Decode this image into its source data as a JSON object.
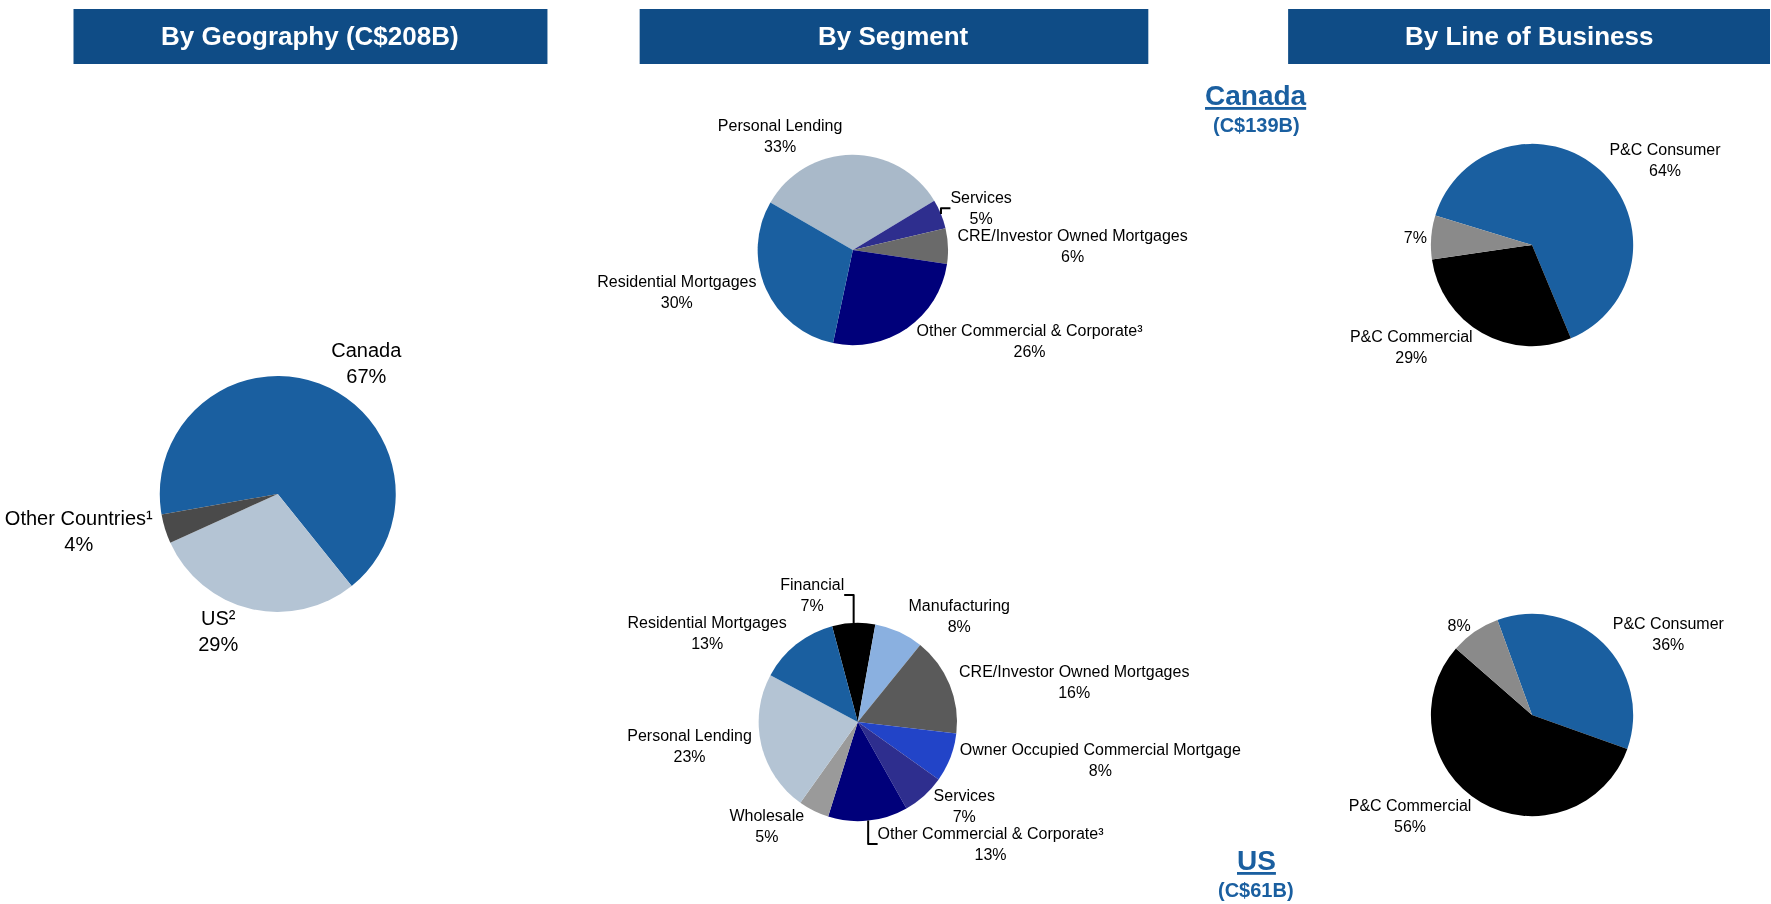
{
  "chart_data": [
    {
      "type": "pie",
      "title": "By Geography (C$208B)",
      "categories": [
        "Canada",
        "US²",
        "Other Countries¹"
      ],
      "values": [
        67,
        29,
        4
      ],
      "value_labels": [
        "67%",
        "29%",
        "4%"
      ],
      "colors": [
        "#1a5fa0",
        "#b4c4d4",
        "#4a4a4a"
      ],
      "legend": false
    },
    {
      "type": "pie",
      "title": "By Segment",
      "categories": [
        "Personal Lending",
        "Services",
        "CRE/Investor Owned Mortgages",
        "Other Commercial & Corporate³",
        "Residential Mortgages"
      ],
      "values": [
        33,
        5,
        6,
        26,
        30
      ],
      "value_labels": [
        "33%",
        "5%",
        "6%",
        "26%",
        "30%"
      ],
      "colors": [
        "#a9b9c9",
        "#2e2e8e",
        "#6a6a6a",
        "#00007a",
        "#1a5fa0"
      ],
      "legend": false
    },
    {
      "type": "pie",
      "categories": [
        "Financial",
        "Manufacturing",
        "CRE/Investor Owned Mortgages",
        "Owner Occupied Commercial Mortgage",
        "Services",
        "Other Commercial & Corporate³",
        "Wholesale",
        "Personal Lending",
        "Residential Mortgages"
      ],
      "values": [
        7,
        8,
        16,
        8,
        7,
        13,
        5,
        23,
        13
      ],
      "value_labels": [
        "7%",
        "8%",
        "16%",
        "8%",
        "7%",
        "13%",
        "5%",
        "23%",
        "13%"
      ],
      "colors": [
        "#000000",
        "#8ab0e0",
        "#5a5a5a",
        "#2244c8",
        "#2e2e8e",
        "#00007a",
        "#9a9a9a",
        "#b4c4d4",
        "#1a5fa0"
      ],
      "legend": false
    },
    {
      "type": "pie",
      "title": "By Line of Business",
      "annotations": [
        "Canada",
        "(C$139B)"
      ],
      "categories": [
        "P&C Consumer",
        "P&C Commercial",
        null
      ],
      "values": [
        64,
        29,
        7
      ],
      "value_labels": [
        "64%",
        "29%",
        "7%"
      ],
      "colors": [
        "#1a5fa0",
        "#000000",
        "#8a8a8a"
      ],
      "legend": false
    },
    {
      "type": "pie",
      "annotations": [
        "US",
        "(C$61B)"
      ],
      "categories": [
        "P&C Consumer",
        "P&C Commercial",
        null
      ],
      "values": [
        36,
        56,
        8
      ],
      "value_labels": [
        "36%",
        "56%",
        "8%"
      ],
      "colors": [
        "#1a5fa0",
        "#000000",
        "#8a8a8a"
      ],
      "legend": false
    }
  ]
}
